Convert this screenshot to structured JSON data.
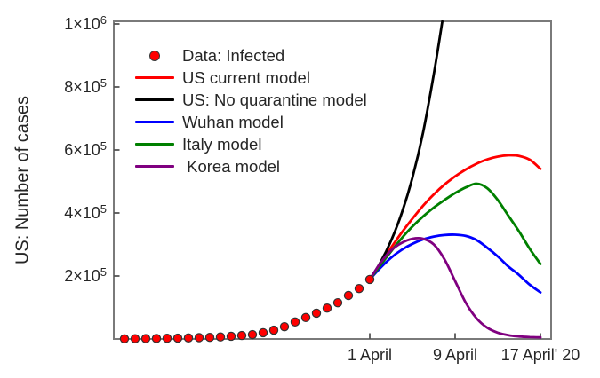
{
  "chart_data": {
    "type": "line",
    "title": "",
    "xlabel": "",
    "ylabel": "US: Number of cases",
    "grid": false,
    "legend_position": "upper-left inside plot, no frame",
    "x_axis": {
      "unit": "date, day number relative to 1 April 2020 (1 = 1 April)",
      "range_days": [
        -23,
        18
      ],
      "ticks": [
        {
          "day": 1,
          "label": "1 April"
        },
        {
          "day": 9,
          "label": "9 April"
        },
        {
          "day": 17,
          "label": "17 April' 20"
        }
      ]
    },
    "y_axis": {
      "range": [
        0,
        1008000
      ],
      "ticks": [
        {
          "value": 200000,
          "base": "2×10",
          "exp": "5"
        },
        {
          "value": 400000,
          "base": "4×10",
          "exp": "5"
        },
        {
          "value": 600000,
          "base": "6×10",
          "exp": "5"
        },
        {
          "value": 800000,
          "base": "8×10",
          "exp": "5"
        },
        {
          "value": 1000000,
          "base": "1×10",
          "exp": "6"
        }
      ]
    },
    "scatter": {
      "name": "Data: Infected",
      "marker": "circle",
      "color": "#ff0000",
      "edge_color": "#333333",
      "x_days": [
        -22,
        -21,
        -20,
        -19,
        -18,
        -17,
        -16,
        -15,
        -14,
        -13,
        -12,
        -11,
        -10,
        -9,
        -8,
        -7,
        -6,
        -5,
        -4,
        -3,
        -2,
        -1,
        0,
        1
      ],
      "values": [
        600,
        900,
        1200,
        1600,
        2100,
        2700,
        3400,
        4200,
        5000,
        6500,
        8500,
        11000,
        14000,
        20000,
        28000,
        39000,
        54000,
        68000,
        82000,
        98000,
        115000,
        138000,
        160000,
        189000
      ]
    },
    "series": [
      {
        "name": "US current model",
        "color": "#ff0000",
        "x_days": [
          1,
          2,
          3,
          4,
          5,
          6,
          7,
          8,
          9,
          10,
          11,
          12,
          13,
          14,
          15,
          16,
          17
        ],
        "values": [
          189000,
          240000,
          290000,
          338000,
          382000,
          423000,
          459000,
          490000,
          516000,
          538000,
          556000,
          570000,
          579000,
          583000,
          581000,
          569000,
          540000
        ]
      },
      {
        "name": "US: No quarantine model",
        "color": "#000000",
        "x_days": [
          1,
          2,
          3,
          4,
          5,
          6,
          7,
          7.8
        ],
        "values": [
          189000,
          243000,
          312000,
          400000,
          512000,
          656000,
          840000,
          1008000
        ]
      },
      {
        "name": "Wuhan model",
        "color": "#0000ff",
        "x_days": [
          1,
          2,
          3,
          4,
          5,
          6,
          7,
          8,
          9,
          10,
          11,
          12,
          13,
          14,
          15,
          16,
          17
        ],
        "values": [
          189000,
          226000,
          258000,
          283000,
          302000,
          316000,
          325000,
          330000,
          331000,
          327000,
          314000,
          290000,
          262000,
          230000,
          203000,
          172000,
          148000
        ]
      },
      {
        "name": "Italy model",
        "color": "#008000",
        "x_days": [
          1,
          2,
          3,
          4,
          5,
          6,
          7,
          8,
          9,
          10,
          11,
          12,
          13,
          14,
          15,
          16,
          17
        ],
        "values": [
          189000,
          234000,
          278000,
          320000,
          357000,
          389000,
          417000,
          441000,
          463000,
          481000,
          493000,
          479000,
          441000,
          391000,
          341000,
          286000,
          238000
        ]
      },
      {
        "name": "Korea model",
        "color": "#800080",
        "x_days": [
          1,
          2,
          3,
          4,
          5,
          6,
          7,
          8,
          9,
          10,
          11,
          12,
          13,
          14,
          15,
          16,
          17
        ],
        "values": [
          189000,
          241000,
          281000,
          305000,
          318000,
          318000,
          300000,
          253000,
          184000,
          115000,
          66000,
          36000,
          20000,
          12000,
          8000,
          6000,
          5000
        ]
      }
    ],
    "legend": {
      "entries": [
        {
          "marker": "dot",
          "color": "#ff0000",
          "label": "Data: Infected"
        },
        {
          "marker": "line",
          "color": "#ff0000",
          "label": "US current model"
        },
        {
          "marker": "line",
          "color": "#000000",
          "label": "US: No quarantine model"
        },
        {
          "marker": "line",
          "color": "#0000ff",
          "label": "Wuhan model"
        },
        {
          "marker": "line",
          "color": "#008000",
          "label": "Italy model"
        },
        {
          "marker": "line",
          "color": "#800080",
          "label": " Korea model"
        }
      ]
    }
  },
  "colors": {
    "background": "#ffffff",
    "axis_frame": "#7a7a7a",
    "tick": "#555555",
    "text": "#262626"
  }
}
